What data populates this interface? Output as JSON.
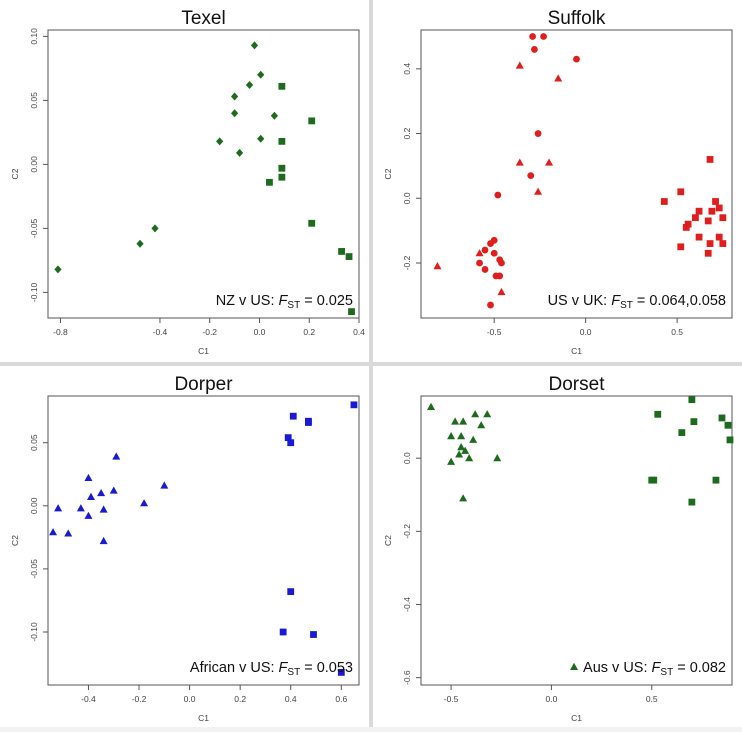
{
  "colors": {
    "green": "#1e6b1e",
    "red": "#e01e1e",
    "blue": "#1a1ad6",
    "axis": "#555555"
  },
  "chart_data": [
    {
      "type": "scatter",
      "title": "Texel",
      "xlabel": "C1",
      "ylabel": "C2",
      "xlim": [
        -0.85,
        0.4
      ],
      "ylim": [
        -0.12,
        0.105
      ],
      "xticks": [
        -0.8,
        -0.4,
        -0.2,
        0.0,
        0.2,
        0.4
      ],
      "xtick_labels": [
        "-0.8",
        "-0.4",
        "-0.2",
        "0.0",
        "0.2",
        "0.4"
      ],
      "yticks": [
        -0.1,
        -0.05,
        0.0,
        0.05,
        0.1
      ],
      "ytick_labels": [
        "-0.10",
        "-0.05",
        "0.00",
        "0.05",
        "0.10"
      ],
      "color": "#1e6b1e",
      "annotation": {
        "prefix": "NZ v US: ",
        "fst": "F",
        "sub": "ST",
        "suffix": " = 0.025"
      },
      "series": [
        {
          "marker": "diamond",
          "points": [
            [
              -0.02,
              0.093
            ],
            [
              0.005,
              0.07
            ],
            [
              -0.04,
              0.062
            ],
            [
              -0.1,
              0.053
            ],
            [
              -0.1,
              0.04
            ],
            [
              0.06,
              0.038
            ],
            [
              0.005,
              0.02
            ],
            [
              -0.16,
              0.018
            ],
            [
              -0.08,
              0.009
            ],
            [
              -0.42,
              -0.05
            ],
            [
              -0.48,
              -0.062
            ],
            [
              -0.81,
              -0.082
            ]
          ]
        },
        {
          "marker": "square",
          "points": [
            [
              0.09,
              0.061
            ],
            [
              0.21,
              0.034
            ],
            [
              0.09,
              0.018
            ],
            [
              0.09,
              -0.003
            ],
            [
              0.09,
              -0.01
            ],
            [
              0.04,
              -0.014
            ],
            [
              0.21,
              -0.046
            ],
            [
              0.33,
              -0.068
            ],
            [
              0.36,
              -0.072
            ],
            [
              0.37,
              -0.115
            ]
          ]
        }
      ]
    },
    {
      "type": "scatter",
      "title": "Suffolk",
      "xlabel": "C1",
      "ylabel": "C2",
      "xlim": [
        -0.9,
        0.8
      ],
      "ylim": [
        -0.37,
        0.52
      ],
      "xticks": [
        -0.5,
        0.0,
        0.5
      ],
      "xtick_labels": [
        "-0.5",
        "0.0",
        "0.5"
      ],
      "yticks": [
        -0.2,
        0.0,
        0.2,
        0.4
      ],
      "ytick_labels": [
        "-0.2",
        "0.0",
        "0.2",
        "0.4"
      ],
      "color": "#e01e1e",
      "annotation": {
        "prefix": "US v UK: ",
        "fst": "F",
        "sub": "ST",
        "suffix": " = 0.064,0.058"
      },
      "series": [
        {
          "marker": "circle",
          "points": [
            [
              -0.29,
              0.5
            ],
            [
              -0.23,
              0.5
            ],
            [
              -0.28,
              0.46
            ],
            [
              -0.05,
              0.43
            ],
            [
              -0.26,
              0.2
            ],
            [
              -0.3,
              0.07
            ],
            [
              -0.48,
              0.01
            ],
            [
              -0.5,
              -0.13
            ],
            [
              -0.52,
              -0.14
            ],
            [
              -0.55,
              -0.16
            ],
            [
              -0.5,
              -0.17
            ],
            [
              -0.47,
              -0.19
            ],
            [
              -0.58,
              -0.2
            ],
            [
              -0.46,
              -0.2
            ],
            [
              -0.55,
              -0.22
            ],
            [
              -0.49,
              -0.24
            ],
            [
              -0.47,
              -0.24
            ],
            [
              -0.52,
              -0.33
            ]
          ]
        },
        {
          "marker": "triangle",
          "points": [
            [
              -0.36,
              0.41
            ],
            [
              -0.15,
              0.37
            ],
            [
              -0.36,
              0.11
            ],
            [
              -0.2,
              0.11
            ],
            [
              -0.26,
              0.02
            ],
            [
              -0.81,
              -0.21
            ],
            [
              -0.46,
              -0.29
            ],
            [
              -0.58,
              -0.17
            ]
          ]
        },
        {
          "marker": "square",
          "points": [
            [
              0.68,
              0.12
            ],
            [
              0.52,
              0.02
            ],
            [
              0.43,
              -0.01
            ],
            [
              0.71,
              -0.01
            ],
            [
              0.73,
              -0.03
            ],
            [
              0.69,
              -0.04
            ],
            [
              0.62,
              -0.04
            ],
            [
              0.6,
              -0.06
            ],
            [
              0.75,
              -0.06
            ],
            [
              0.67,
              -0.07
            ],
            [
              0.56,
              -0.08
            ],
            [
              0.55,
              -0.09
            ],
            [
              0.62,
              -0.12
            ],
            [
              0.73,
              -0.12
            ],
            [
              0.68,
              -0.14
            ],
            [
              0.75,
              -0.14
            ],
            [
              0.52,
              -0.15
            ],
            [
              0.67,
              -0.17
            ]
          ]
        }
      ]
    },
    {
      "type": "scatter",
      "title": "Dorper",
      "xlabel": "C1",
      "ylabel": "C2",
      "xlim": [
        -0.56,
        0.67
      ],
      "ylim": [
        -0.142,
        0.087
      ],
      "xticks": [
        -0.4,
        -0.2,
        0.0,
        0.2,
        0.4,
        0.6
      ],
      "xtick_labels": [
        "-0.4",
        "-0.2",
        "0.0",
        "0.2",
        "0.4",
        "0.6"
      ],
      "yticks": [
        -0.1,
        -0.05,
        0.0,
        0.05
      ],
      "ytick_labels": [
        "-0.10",
        "-0.05",
        "0.00",
        "0.05"
      ],
      "color": "#1a1ad6",
      "annotation": {
        "prefix": "African v US: ",
        "fst": "F",
        "sub": "ST",
        "suffix": " = 0.053"
      },
      "series": [
        {
          "marker": "triangle",
          "points": [
            [
              -0.29,
              0.039
            ],
            [
              -0.4,
              0.022
            ],
            [
              -0.1,
              0.016
            ],
            [
              -0.3,
              0.012
            ],
            [
              -0.35,
              0.01
            ],
            [
              -0.39,
              0.007
            ],
            [
              -0.18,
              0.002
            ],
            [
              -0.52,
              -0.002
            ],
            [
              -0.43,
              -0.002
            ],
            [
              -0.34,
              -0.003
            ],
            [
              -0.4,
              -0.008
            ],
            [
              -0.54,
              -0.021
            ],
            [
              -0.48,
              -0.022
            ],
            [
              -0.34,
              -0.028
            ]
          ]
        },
        {
          "marker": "square",
          "points": [
            [
              0.65,
              0.08
            ],
            [
              0.41,
              0.071
            ],
            [
              0.47,
              0.066
            ],
            [
              0.47,
              0.067
            ],
            [
              0.39,
              0.054
            ],
            [
              0.4,
              0.05
            ],
            [
              0.4,
              -0.068
            ],
            [
              0.37,
              -0.1
            ],
            [
              0.49,
              -0.102
            ],
            [
              0.6,
              -0.132
            ]
          ]
        }
      ]
    },
    {
      "type": "scatter",
      "title": "Dorset",
      "xlabel": "C1",
      "ylabel": "C2",
      "xlim": [
        -0.65,
        0.9
      ],
      "ylim": [
        -0.62,
        0.17
      ],
      "xticks": [
        -0.5,
        0.0,
        0.5
      ],
      "xtick_labels": [
        "-0.5",
        "0.0",
        "0.5"
      ],
      "yticks": [
        -0.6,
        -0.4,
        -0.2,
        0.0
      ],
      "ytick_labels": [
        "-0.6",
        "-0.4",
        "-0.2",
        "0.0"
      ],
      "color": "#1e6b1e",
      "annotation": {
        "prefix": "Aus v US: ",
        "fst": "F",
        "sub": "ST",
        "suffix": " = 0.082"
      },
      "series": [
        {
          "marker": "triangle",
          "points": [
            [
              -0.6,
              0.14
            ],
            [
              -0.38,
              0.12
            ],
            [
              -0.32,
              0.12
            ],
            [
              -0.48,
              0.1
            ],
            [
              -0.44,
              0.1
            ],
            [
              -0.35,
              0.09
            ],
            [
              -0.5,
              0.06
            ],
            [
              -0.45,
              0.06
            ],
            [
              -0.39,
              0.05
            ],
            [
              -0.45,
              0.03
            ],
            [
              -0.43,
              0.02
            ],
            [
              -0.46,
              0.01
            ],
            [
              -0.27,
              0.0
            ],
            [
              -0.41,
              0.0
            ],
            [
              -0.5,
              -0.01
            ],
            [
              -0.44,
              -0.11
            ]
          ]
        },
        {
          "marker": "square",
          "points": [
            [
              0.7,
              0.16
            ],
            [
              0.53,
              0.12
            ],
            [
              0.85,
              0.11
            ],
            [
              0.71,
              0.1
            ],
            [
              0.88,
              0.09
            ],
            [
              0.65,
              0.07
            ],
            [
              0.89,
              0.05
            ],
            [
              0.51,
              -0.06
            ],
            [
              0.5,
              -0.06
            ],
            [
              0.82,
              -0.06
            ],
            [
              0.7,
              -0.12
            ]
          ]
        }
      ],
      "legend_marker": "triangle"
    }
  ]
}
